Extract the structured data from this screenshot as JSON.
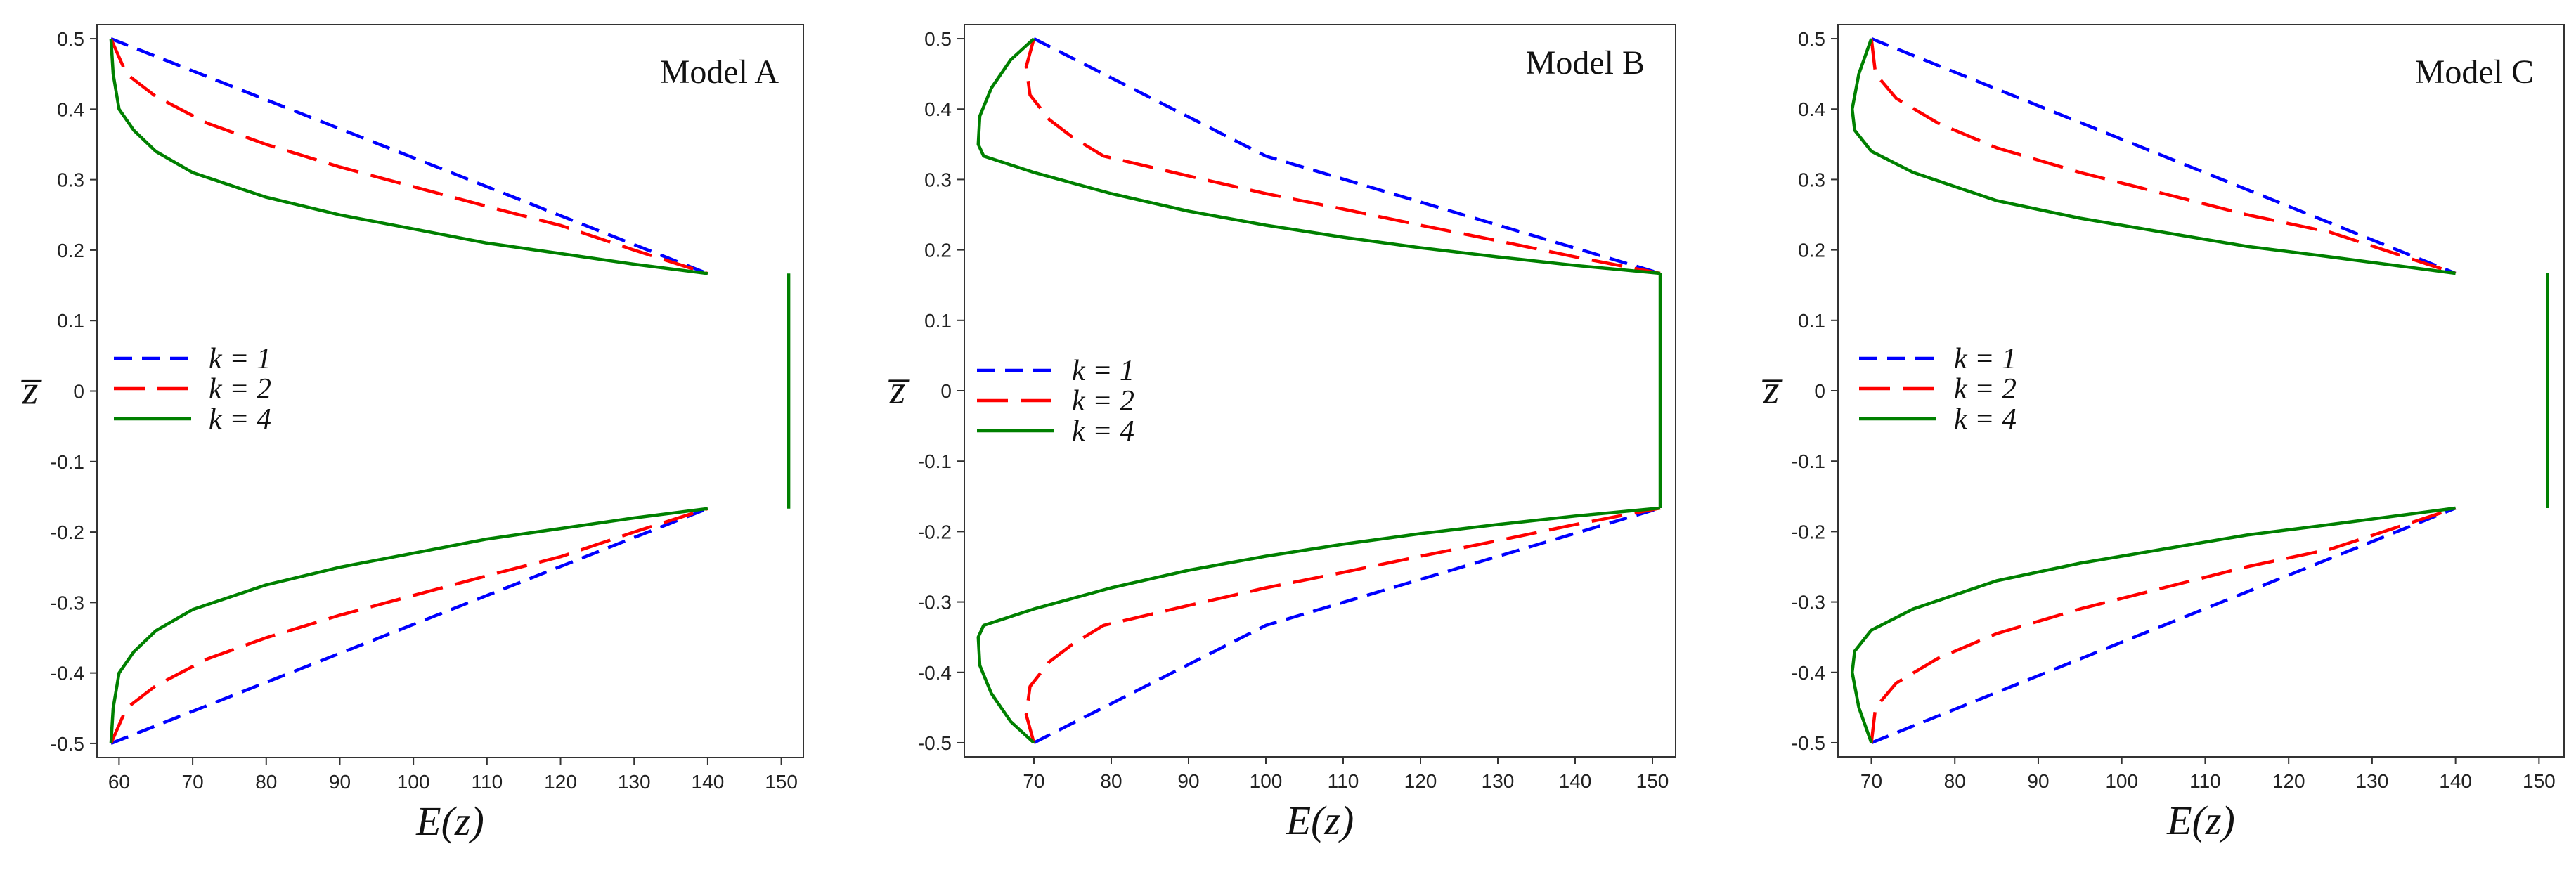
{
  "chart_data": [
    {
      "type": "line",
      "title": "Model A",
      "xlabel": "E(z)",
      "ylabel": "z̅",
      "xlim": [
        57,
        153
      ],
      "ylim": [
        -0.52,
        0.52
      ],
      "xticks": [
        60,
        70,
        80,
        90,
        100,
        110,
        120,
        130,
        140,
        150
      ],
      "yticks": [
        -0.5,
        -0.4,
        -0.3,
        -0.2,
        -0.1,
        0,
        0.1,
        0.2,
        0.3,
        0.4,
        0.5
      ],
      "legend": [
        "k = 1",
        "k = 2",
        "k = 4"
      ],
      "legend_position": "middle-left",
      "series": [
        {
          "name": "k = 1",
          "color": "#0000ff",
          "style": "dashed",
          "x": [
            58.9,
            140.0
          ],
          "y": [
            0.5,
            0.1667
          ],
          "x2": [
            58.9,
            140.0
          ],
          "y2": [
            -0.5,
            -0.1667
          ]
        },
        {
          "name": "k = 2",
          "color": "#ff0000",
          "style": "longdash",
          "x": [
            58.9,
            61,
            65,
            72,
            80,
            90,
            100,
            110,
            120,
            130,
            140
          ],
          "y": [
            0.5,
            0.45,
            0.418,
            0.38,
            0.35,
            0.318,
            0.29,
            0.262,
            0.235,
            0.2,
            0.1667
          ],
          "x2": [
            58.9,
            61,
            65,
            72,
            80,
            90,
            100,
            110,
            120,
            130,
            140
          ],
          "y2": [
            -0.5,
            -0.45,
            -0.418,
            -0.38,
            -0.35,
            -0.318,
            -0.29,
            -0.262,
            -0.235,
            -0.2,
            -0.1667
          ]
        },
        {
          "name": "k = 4",
          "color": "#008000",
          "style": "solid",
          "x": [
            58.9,
            59.2,
            60,
            62,
            65,
            70,
            80,
            90,
            100,
            110,
            120,
            130,
            140
          ],
          "y": [
            0.5,
            0.45,
            0.4,
            0.37,
            0.34,
            0.31,
            0.275,
            0.25,
            0.23,
            0.21,
            0.195,
            0.18,
            0.1667
          ],
          "x2": [
            58.9,
            59.2,
            60,
            62,
            65,
            70,
            80,
            90,
            100,
            110,
            120,
            130,
            140
          ],
          "y2": [
            -0.5,
            -0.45,
            -0.4,
            -0.37,
            -0.34,
            -0.31,
            -0.275,
            -0.25,
            -0.23,
            -0.21,
            -0.195,
            -0.18,
            -0.1667
          ],
          "core_x": [
            151.0,
            151.0
          ],
          "core_y": [
            -0.1667,
            0.1667
          ]
        }
      ]
    },
    {
      "type": "line",
      "title": "Model B",
      "xlabel": "E(z)",
      "ylabel": "z̅",
      "xlim": [
        61,
        153
      ],
      "ylim": [
        -0.52,
        0.52
      ],
      "xticks": [
        70,
        80,
        90,
        100,
        110,
        120,
        130,
        140,
        150
      ],
      "yticks": [
        -0.5,
        -0.4,
        -0.3,
        -0.2,
        -0.1,
        0,
        0.1,
        0.2,
        0.3,
        0.4,
        0.5
      ],
      "legend": [
        "k = 1",
        "k = 2",
        "k = 4"
      ],
      "legend_position": "middle-left",
      "series": [
        {
          "name": "k = 1",
          "color": "#0000ff",
          "style": "dashed",
          "x": [
            70,
            100,
            151
          ],
          "y": [
            0.5,
            0.3333,
            0.1667
          ],
          "x2": [
            70,
            100,
            151
          ],
          "y2": [
            -0.5,
            -0.3333,
            -0.1667
          ]
        },
        {
          "name": "k = 2",
          "color": "#ff0000",
          "style": "longdash",
          "x": [
            70,
            69,
            69.5,
            72,
            75,
            79,
            90,
            100,
            110,
            120,
            130,
            140,
            151
          ],
          "y": [
            0.5,
            0.46,
            0.42,
            0.385,
            0.36,
            0.3333,
            0.305,
            0.28,
            0.258,
            0.235,
            0.213,
            0.19,
            0.1667
          ],
          "x2": [
            70,
            69,
            69.5,
            72,
            75,
            79,
            90,
            100,
            110,
            120,
            130,
            140,
            151
          ],
          "y2": [
            -0.5,
            -0.46,
            -0.42,
            -0.385,
            -0.36,
            -0.3333,
            -0.305,
            -0.28,
            -0.258,
            -0.235,
            -0.213,
            -0.19,
            -0.1667
          ]
        },
        {
          "name": "k = 4",
          "color": "#008000",
          "style": "solid",
          "x": [
            70,
            67,
            64.5,
            63,
            62.8,
            63.5,
            70,
            80,
            90,
            100,
            110,
            120,
            130,
            140,
            151
          ],
          "y": [
            0.5,
            0.47,
            0.43,
            0.39,
            0.35,
            0.3333,
            0.31,
            0.28,
            0.255,
            0.235,
            0.218,
            0.203,
            0.19,
            0.178,
            0.1667
          ],
          "x2": [
            70,
            67,
            64.5,
            63,
            62.8,
            63.5,
            70,
            80,
            90,
            100,
            110,
            120,
            130,
            140,
            151
          ],
          "y2": [
            -0.5,
            -0.47,
            -0.43,
            -0.39,
            -0.35,
            -0.3333,
            -0.31,
            -0.28,
            -0.255,
            -0.235,
            -0.218,
            -0.203,
            -0.19,
            -0.178,
            -0.1667
          ],
          "core_x": [
            151.0,
            151.0
          ],
          "core_y": [
            -0.1667,
            0.1667
          ]
        }
      ]
    },
    {
      "type": "line",
      "title": "Model C",
      "xlabel": "E(z)",
      "ylabel": "z̅",
      "xlim": [
        66,
        153
      ],
      "ylim": [
        -0.52,
        0.52
      ],
      "xticks": [
        70,
        80,
        90,
        100,
        110,
        120,
        130,
        140,
        150
      ],
      "yticks": [
        -0.5,
        -0.4,
        -0.3,
        -0.2,
        -0.1,
        0,
        0.1,
        0.2,
        0.3,
        0.4,
        0.5
      ],
      "legend": [
        "k = 1",
        "k = 2",
        "k = 4"
      ],
      "legend_position": "middle-left",
      "series": [
        {
          "name": "k = 1",
          "color": "#0000ff",
          "style": "dashed",
          "x": [
            70,
            140
          ],
          "y": [
            0.5,
            0.1667
          ],
          "x2": [
            70,
            140
          ],
          "y2": [
            -0.5,
            -0.1667
          ]
        },
        {
          "name": "k = 2",
          "color": "#ff0000",
          "style": "longdash",
          "x": [
            70,
            70.5,
            73,
            78,
            85,
            95,
            105,
            115,
            125,
            140
          ],
          "y": [
            0.5,
            0.45,
            0.415,
            0.38,
            0.345,
            0.31,
            0.28,
            0.25,
            0.225,
            0.1667
          ],
          "x2": [
            70,
            70.5,
            73,
            78,
            85,
            95,
            105,
            115,
            125,
            140
          ],
          "y2": [
            -0.5,
            -0.45,
            -0.415,
            -0.38,
            -0.345,
            -0.31,
            -0.28,
            -0.25,
            -0.225,
            -0.1667
          ]
        },
        {
          "name": "k = 4",
          "color": "#008000",
          "style": "solid",
          "x": [
            70,
            68.5,
            67.7,
            68,
            70,
            75,
            85,
            95,
            105,
            115,
            125,
            140
          ],
          "y": [
            0.5,
            0.45,
            0.4,
            0.37,
            0.34,
            0.31,
            0.27,
            0.245,
            0.225,
            0.205,
            0.19,
            0.1667
          ],
          "x2": [
            70,
            68.5,
            67.7,
            68,
            70,
            75,
            85,
            95,
            105,
            115,
            125,
            140
          ],
          "y2": [
            -0.5,
            -0.45,
            -0.4,
            -0.37,
            -0.34,
            -0.31,
            -0.27,
            -0.245,
            -0.225,
            -0.205,
            -0.19,
            -0.1667
          ],
          "core_x": [
            151.0,
            151.0
          ],
          "core_y": [
            -0.1667,
            0.1667
          ]
        }
      ]
    }
  ]
}
